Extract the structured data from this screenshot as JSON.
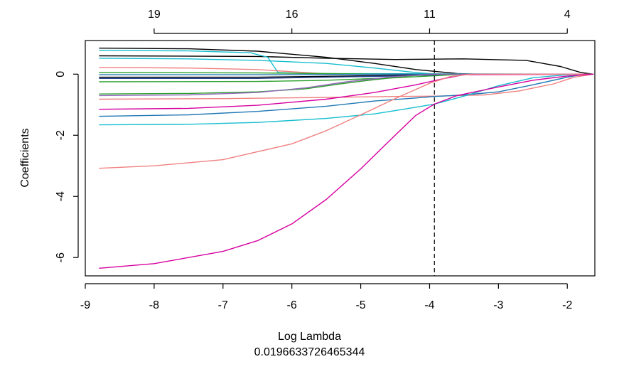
{
  "chart_data": {
    "type": "line",
    "title": "",
    "xlabel": "Log Lambda",
    "ylabel": "Coefficients",
    "subtitle": "0.0196633726465344",
    "xlim": [
      -9,
      -1.6
    ],
    "ylim": [
      -6.6,
      1.1
    ],
    "x_ticks": [
      -9,
      -8,
      -7,
      -6,
      -5,
      -4,
      -3,
      -2
    ],
    "y_ticks": [
      -6,
      -4,
      -2,
      0
    ],
    "top_axis": {
      "ticks": [
        {
          "x": -8,
          "label": "19"
        },
        {
          "x": -6,
          "label": "16"
        },
        {
          "x": -4,
          "label": "11"
        },
        {
          "x": -2,
          "label": "4"
        }
      ]
    },
    "vline": {
      "x": -3.93,
      "style": "dashed"
    },
    "series": [
      {
        "name": "path-black-1",
        "color": "#000000",
        "points": [
          [
            -8.8,
            0.85
          ],
          [
            -7.5,
            0.83
          ],
          [
            -6.5,
            0.75
          ],
          [
            -5.5,
            0.55
          ],
          [
            -4.8,
            0.35
          ],
          [
            -4.2,
            0.15
          ],
          [
            -3.6,
            0.02
          ],
          [
            -3.3,
            0.0
          ],
          [
            -1.62,
            0.0
          ]
        ]
      },
      {
        "name": "path-black-2",
        "color": "#000000",
        "points": [
          [
            -8.8,
            0.6
          ],
          [
            -6.5,
            0.58
          ],
          [
            -5.5,
            0.52
          ],
          [
            -4.5,
            0.48
          ],
          [
            -3.5,
            0.5
          ],
          [
            -2.6,
            0.45
          ],
          [
            -2.1,
            0.25
          ],
          [
            -1.8,
            0.05
          ],
          [
            -1.62,
            0.0
          ]
        ]
      },
      {
        "name": "path-cyan-1",
        "color": "#17BECF",
        "points": [
          [
            -8.8,
            0.78
          ],
          [
            -7.5,
            0.76
          ],
          [
            -6.6,
            0.7
          ],
          [
            -6.35,
            0.55
          ],
          [
            -6.2,
            0.05
          ],
          [
            -5.8,
            0.02
          ],
          [
            -1.62,
            0.0
          ]
        ]
      },
      {
        "name": "path-cyan-2",
        "color": "#17BECF",
        "points": [
          [
            -8.8,
            0.52
          ],
          [
            -7.5,
            0.5
          ],
          [
            -6.5,
            0.45
          ],
          [
            -5.5,
            0.35
          ],
          [
            -4.8,
            0.2
          ],
          [
            -4.2,
            0.05
          ],
          [
            -3.9,
            0.0
          ],
          [
            -1.62,
            0.0
          ]
        ]
      },
      {
        "name": "path-salmon-1",
        "color": "#F08080",
        "points": [
          [
            -8.8,
            0.22
          ],
          [
            -7.5,
            0.2
          ],
          [
            -6.5,
            0.15
          ],
          [
            -5.8,
            0.05
          ],
          [
            -5.4,
            0.0
          ],
          [
            -1.62,
            0.0
          ]
        ]
      },
      {
        "name": "path-green-1",
        "color": "#2CA02C",
        "points": [
          [
            -8.8,
            0.05
          ],
          [
            -6.5,
            0.04
          ],
          [
            -5.5,
            0.02
          ],
          [
            -4.8,
            0.0
          ],
          [
            -1.62,
            0.0
          ]
        ]
      },
      {
        "name": "path-blue-1",
        "color": "#1F77B4",
        "points": [
          [
            -8.8,
            -0.02
          ],
          [
            -6.5,
            -0.02
          ],
          [
            -5.2,
            -0.01
          ],
          [
            -4.5,
            0.0
          ],
          [
            -1.62,
            0.0
          ]
        ]
      },
      {
        "name": "path-black-3",
        "color": "#000000",
        "points": [
          [
            -8.8,
            -0.1
          ],
          [
            -6.5,
            -0.1
          ],
          [
            -5.2,
            -0.06
          ],
          [
            -4.2,
            -0.03
          ],
          [
            -3.6,
            0.0
          ],
          [
            -1.62,
            0.0
          ]
        ]
      },
      {
        "name": "path-navy-1",
        "color": "#1F3F8F",
        "points": [
          [
            -8.8,
            -0.14
          ],
          [
            -6.5,
            -0.14
          ],
          [
            -5.5,
            -0.1
          ],
          [
            -4.5,
            -0.06
          ],
          [
            -3.8,
            -0.02
          ],
          [
            -3.4,
            0.0
          ],
          [
            -1.62,
            0.0
          ]
        ]
      },
      {
        "name": "path-green-2",
        "color": "#2CA02C",
        "points": [
          [
            -8.8,
            -0.25
          ],
          [
            -6.5,
            -0.24
          ],
          [
            -5.5,
            -0.2
          ],
          [
            -4.5,
            -0.12
          ],
          [
            -3.9,
            -0.05
          ],
          [
            -3.5,
            0.0
          ],
          [
            -1.62,
            0.0
          ]
        ]
      },
      {
        "name": "path-green-3",
        "color": "#2CA02C",
        "points": [
          [
            -8.8,
            -0.65
          ],
          [
            -7.5,
            -0.63
          ],
          [
            -6.5,
            -0.58
          ],
          [
            -5.8,
            -0.48
          ],
          [
            -5.3,
            -0.32
          ],
          [
            -4.8,
            -0.18
          ],
          [
            -4.3,
            -0.06
          ],
          [
            -4.0,
            0.0
          ],
          [
            -1.62,
            0.0
          ]
        ]
      },
      {
        "name": "path-purple-1",
        "color": "#9467BD",
        "points": [
          [
            -8.8,
            -0.7
          ],
          [
            -7.5,
            -0.68
          ],
          [
            -6.5,
            -0.6
          ],
          [
            -5.8,
            -0.45
          ],
          [
            -5.2,
            -0.25
          ],
          [
            -4.6,
            -0.1
          ],
          [
            -4.0,
            0.0
          ],
          [
            -1.62,
            0.0
          ]
        ]
      },
      {
        "name": "path-salmon-2",
        "color": "#F08080",
        "points": [
          [
            -8.8,
            -0.82
          ],
          [
            -7.0,
            -0.8
          ],
          [
            -5.5,
            -0.76
          ],
          [
            -4.5,
            -0.73
          ],
          [
            -3.9,
            -0.72
          ],
          [
            -3.2,
            -0.68
          ],
          [
            -2.7,
            -0.55
          ],
          [
            -2.2,
            -0.32
          ],
          [
            -1.9,
            -0.1
          ],
          [
            -1.62,
            0.0
          ]
        ]
      },
      {
        "name": "path-magenta-1",
        "color": "#D6009F",
        "points": [
          [
            -8.8,
            -1.15
          ],
          [
            -7.5,
            -1.12
          ],
          [
            -6.5,
            -1.02
          ],
          [
            -5.5,
            -0.82
          ],
          [
            -4.8,
            -0.6
          ],
          [
            -4.2,
            -0.35
          ],
          [
            -3.8,
            -0.15
          ],
          [
            -3.5,
            -0.02
          ],
          [
            -1.62,
            0.0
          ]
        ]
      },
      {
        "name": "path-blue-2",
        "color": "#1F77B4",
        "points": [
          [
            -8.8,
            -1.38
          ],
          [
            -7.5,
            -1.33
          ],
          [
            -6.5,
            -1.22
          ],
          [
            -5.5,
            -1.05
          ],
          [
            -4.8,
            -0.88
          ],
          [
            -4.2,
            -0.78
          ],
          [
            -3.93,
            -0.73
          ],
          [
            -3.5,
            -0.68
          ],
          [
            -3.0,
            -0.58
          ],
          [
            -2.5,
            -0.35
          ],
          [
            -2.0,
            -0.1
          ],
          [
            -1.8,
            -0.02
          ],
          [
            -1.62,
            0.0
          ]
        ]
      },
      {
        "name": "path-cyan-3",
        "color": "#17BECF",
        "points": [
          [
            -8.8,
            -1.66
          ],
          [
            -7.5,
            -1.64
          ],
          [
            -6.5,
            -1.58
          ],
          [
            -5.5,
            -1.45
          ],
          [
            -4.8,
            -1.3
          ],
          [
            -4.3,
            -1.12
          ],
          [
            -3.93,
            -0.98
          ],
          [
            -3.5,
            -0.72
          ],
          [
            -3.0,
            -0.38
          ],
          [
            -2.5,
            -0.12
          ],
          [
            -2.0,
            -0.02
          ],
          [
            -1.62,
            0.0
          ]
        ]
      },
      {
        "name": "path-salmon-3",
        "color": "#F08080",
        "points": [
          [
            -8.8,
            -3.08
          ],
          [
            -8.0,
            -3.0
          ],
          [
            -7.0,
            -2.8
          ],
          [
            -6.0,
            -2.28
          ],
          [
            -5.5,
            -1.85
          ],
          [
            -5.0,
            -1.33
          ],
          [
            -4.5,
            -0.8
          ],
          [
            -4.0,
            -0.3
          ],
          [
            -3.7,
            -0.08
          ],
          [
            -3.4,
            0.0
          ],
          [
            -1.62,
            0.0
          ]
        ]
      },
      {
        "name": "path-magenta-2",
        "color": "#D6009F",
        "points": [
          [
            -8.8,
            -6.35
          ],
          [
            -8.0,
            -6.2
          ],
          [
            -7.0,
            -5.8
          ],
          [
            -6.5,
            -5.45
          ],
          [
            -6.0,
            -4.9
          ],
          [
            -5.5,
            -4.1
          ],
          [
            -5.0,
            -3.1
          ],
          [
            -4.5,
            -2.0
          ],
          [
            -4.2,
            -1.35
          ],
          [
            -3.93,
            -0.98
          ],
          [
            -3.6,
            -0.7
          ],
          [
            -3.0,
            -0.42
          ],
          [
            -2.5,
            -0.2
          ],
          [
            -2.0,
            -0.06
          ],
          [
            -1.62,
            0.0
          ]
        ]
      }
    ]
  }
}
